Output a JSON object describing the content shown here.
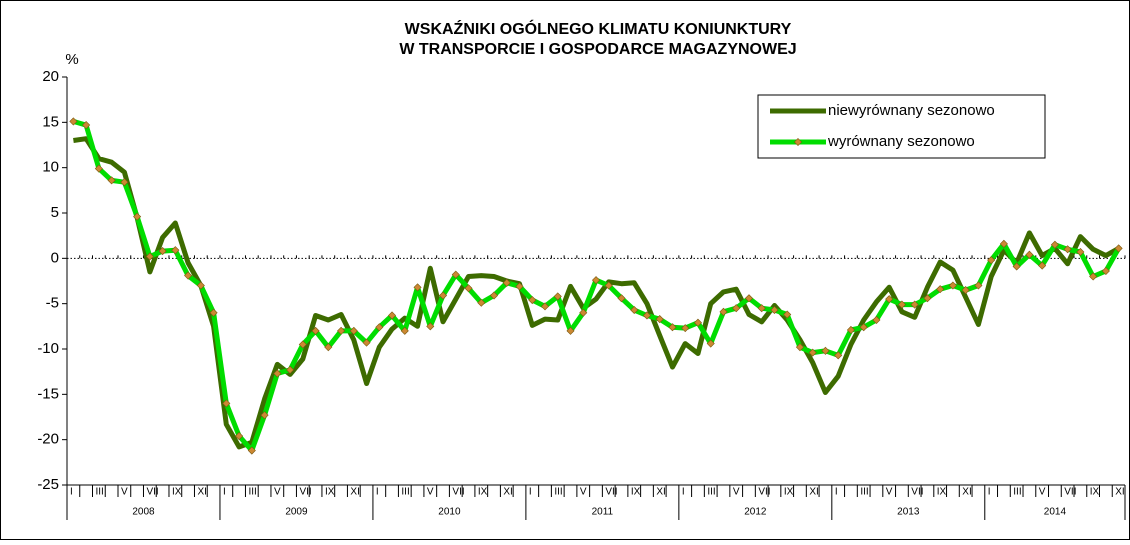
{
  "chart_data": {
    "type": "line",
    "title": [
      "WSKAŹNIKI OGÓLNEGO KLIMATU KONIUNKTURY",
      "W TRANSPORCIE I GOSPODARCE MAGAZYNOWEJ"
    ],
    "y_label": "%",
    "years": [
      "2008",
      "2009",
      "2010",
      "2011",
      "2012",
      "2013",
      "2014"
    ],
    "categories": [
      "I",
      null,
      "III",
      null,
      "V",
      null,
      "VII",
      null,
      "IX",
      null,
      "XI",
      null,
      "I",
      null,
      "III",
      null,
      "V",
      null,
      "VII",
      null,
      "IX",
      null,
      "XI",
      null,
      "I",
      null,
      "III",
      null,
      "V",
      null,
      "VII",
      null,
      "IX",
      null,
      "XI",
      null,
      "I",
      null,
      "III",
      null,
      "V",
      null,
      "VII",
      null,
      "IX",
      null,
      "XI",
      null,
      "I",
      null,
      "III",
      null,
      "V",
      null,
      "VII",
      null,
      "IX",
      null,
      "XI",
      null,
      "I",
      null,
      "III",
      null,
      "V",
      null,
      "VII",
      null,
      "IX",
      null,
      "XI",
      null,
      "I",
      null,
      "III",
      null,
      "V",
      null,
      "VII",
      null,
      "IX",
      null,
      "XI"
    ],
    "series": [
      {
        "name": "niewyrównany sezonowo",
        "color": "#3d6b00",
        "marker": false,
        "values": [
          13,
          13.2,
          11,
          10.6,
          9.5,
          4.5,
          -1.5,
          2.3,
          3.9,
          -0.5,
          -3,
          -7.5,
          -18.3,
          -20.8,
          -20.3,
          -15.5,
          -11.7,
          -12.8,
          -11.1,
          -6.3,
          -6.8,
          -6.2,
          -9,
          -13.8,
          -9.8,
          -7.8,
          -6.6,
          -7.5,
          -1.1,
          -7,
          -4.5,
          -2,
          -1.9,
          -2,
          -2.5,
          -2.8,
          -7.4,
          -6.7,
          -6.8,
          -3.1,
          -5.5,
          -4.5,
          -2.6,
          -2.8,
          -2.7,
          -5,
          -8.5,
          -12,
          -9.4,
          -10.5,
          -5,
          -3.7,
          -3.4,
          -6.2,
          -7,
          -5.2,
          -6.8,
          -9,
          -11.5,
          -14.8,
          -13,
          -9.5,
          -6.8,
          -4.8,
          -3.2,
          -5.9,
          -6.5,
          -3.2,
          -0.4,
          -1.3,
          -4.3,
          -7.3,
          -2,
          0.9,
          -0.5,
          2.8,
          0.3,
          1.1,
          -0.6,
          2.4,
          1,
          0.3,
          1.1
        ]
      },
      {
        "name": "wyrównany sezonowo",
        "color": "#00dd00",
        "marker": true,
        "marker_color": "#cc8833",
        "values": [
          15.1,
          14.7,
          9.9,
          8.6,
          8.4,
          4.6,
          0.2,
          0.8,
          0.9,
          -1.9,
          -3,
          -6,
          -16,
          -19.6,
          -21.2,
          -17.3,
          -12.7,
          -12.3,
          -9.5,
          -8,
          -9.8,
          -8,
          -8,
          -9.3,
          -7.6,
          -6.3,
          -8,
          -3.2,
          -7.5,
          -4.1,
          -1.8,
          -3.3,
          -4.9,
          -4.1,
          -2.7,
          -3.1,
          -4.6,
          -5.3,
          -4.2,
          -8,
          -6,
          -2.4,
          -3,
          -4.4,
          -5.7,
          -6.3,
          -6.7,
          -7.6,
          -7.7,
          -7.1,
          -9.4,
          -5.9,
          -5.5,
          -4.4,
          -5.5,
          -5.7,
          -6.2,
          -9.8,
          -10.4,
          -10.2,
          -10.7,
          -7.9,
          -7.6,
          -6.8,
          -4.5,
          -5.1,
          -5.1,
          -4.4,
          -3.4,
          -3,
          -3.5,
          -3,
          -0.2,
          1.6,
          -0.9,
          0.4,
          -0.8,
          1.5,
          1,
          0.7,
          -2,
          -1.4,
          1.1
        ]
      }
    ],
    "ylim": [
      -25,
      20
    ],
    "yticks": [
      -25,
      -20,
      -15,
      -10,
      -5,
      0,
      5,
      10,
      15,
      20
    ],
    "grid": false,
    "legend": "top-right"
  }
}
